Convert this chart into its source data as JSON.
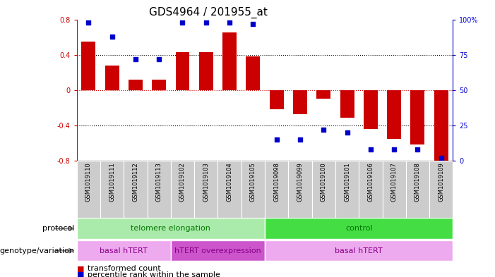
{
  "title": "GDS4964 / 201955_at",
  "samples": [
    "GSM1019110",
    "GSM1019111",
    "GSM1019112",
    "GSM1019113",
    "GSM1019102",
    "GSM1019103",
    "GSM1019104",
    "GSM1019105",
    "GSM1019098",
    "GSM1019099",
    "GSM1019100",
    "GSM1019101",
    "GSM1019106",
    "GSM1019107",
    "GSM1019108",
    "GSM1019109"
  ],
  "bar_values": [
    0.55,
    0.28,
    0.12,
    0.12,
    0.43,
    0.43,
    0.65,
    0.38,
    -0.22,
    -0.27,
    -0.1,
    -0.31,
    -0.44,
    -0.55,
    -0.62,
    -0.8
  ],
  "dot_values": [
    98,
    88,
    72,
    72,
    98,
    98,
    98,
    97,
    15,
    15,
    22,
    20,
    8,
    8,
    8,
    2
  ],
  "ylim": [
    -0.8,
    0.8
  ],
  "yticks": [
    -0.8,
    -0.4,
    0.0,
    0.4,
    0.8
  ],
  "ytick_labels": [
    "-0.8",
    "-0.4",
    "0",
    "0.4",
    "0.8"
  ],
  "right_yticks": [
    0,
    25,
    50,
    75,
    100
  ],
  "right_ytick_labels": [
    "0",
    "25",
    "50",
    "75",
    "100%"
  ],
  "bar_color": "#cc0000",
  "dot_color": "#0000cc",
  "zero_line_color": "#cc0000",
  "grid_color": "#000000",
  "protocol_label": "protocol",
  "genotype_label": "genotype/variation",
  "protocol_groups": [
    {
      "label": "telomere elongation",
      "start": 0,
      "end": 7,
      "color": "#aaeaaa"
    },
    {
      "label": "control",
      "start": 8,
      "end": 15,
      "color": "#44dd44"
    }
  ],
  "genotype_groups": [
    {
      "label": "basal hTERT",
      "start": 0,
      "end": 3,
      "color": "#eeaaee"
    },
    {
      "label": "hTERT overexpression",
      "start": 4,
      "end": 7,
      "color": "#cc55cc"
    },
    {
      "label": "basal hTERT",
      "start": 8,
      "end": 15,
      "color": "#eeaaee"
    }
  ],
  "legend_bar_label": "transformed count",
  "legend_dot_label": "percentile rank within the sample",
  "title_fontsize": 11,
  "tick_fontsize": 7,
  "sample_fontsize": 6,
  "label_row_fontsize": 8,
  "legend_fontsize": 8
}
